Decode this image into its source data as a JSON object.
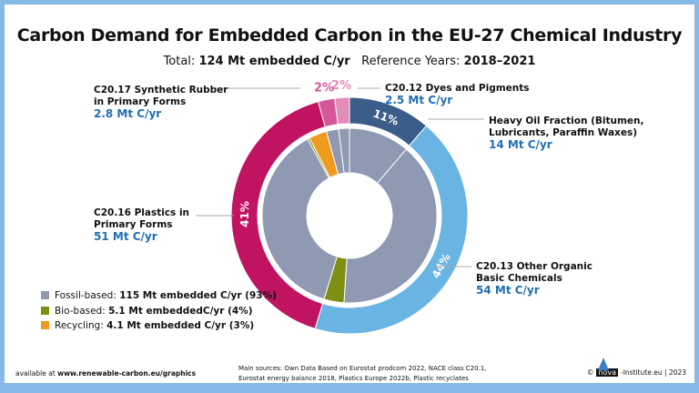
{
  "title": "Carbon Demand for Embedded Carbon in the EU-27 Chemical Industry",
  "subtitle": {
    "total_label": "Total:",
    "total_value": "124 Mt embedded C/yr",
    "years_label": "Reference Years:",
    "years_value": "2018–2021"
  },
  "chart_data": {
    "type": "pie",
    "variant": "nested-donut",
    "title": "Carbon Demand for Embedded Carbon in the EU-27 Chemical Industry",
    "unit": "Mt C/yr",
    "outer": [
      {
        "name": "C20.12 Dyes and Pigments",
        "value": 2.5,
        "value_label": "2.5 Mt C/yr",
        "percent_label": "2%",
        "color": "#e38cb8"
      },
      {
        "name": "Heavy Oil Fraction (Bitumen, Lubricants, Paraffin Waxes)",
        "value": 14,
        "value_label": "14 Mt C/yr",
        "percent_label": "11%",
        "color": "#3a5d8a"
      },
      {
        "name": "C20.13 Other Organic Basic Chemicals",
        "value": 54,
        "value_label": "54 Mt C/yr",
        "percent_label": "44%",
        "color": "#6ab4e4"
      },
      {
        "name": "C20.16 Plastics in Primary Forms",
        "value": 51,
        "value_label": "51 Mt C/yr",
        "percent_label": "41%",
        "color": "#c01463"
      },
      {
        "name": "C20.17 Synthetic Rubber in Primary Forms",
        "value": 2.8,
        "value_label": "2.8 Mt C/yr",
        "percent_label": "2%",
        "color": "#d5579a"
      }
    ],
    "inner": [
      {
        "category": "Fossil-based",
        "value": 2.5
      },
      {
        "category": "Fossil-based",
        "value": 14
      },
      {
        "category": "Fossil-based",
        "value": 49.4
      },
      {
        "category": "Bio-based",
        "value": 4.6
      },
      {
        "category": "Fossil-based",
        "value": 46.4
      },
      {
        "category": "Bio-based",
        "value": 0.5
      },
      {
        "category": "Recycling",
        "value": 4.1
      },
      {
        "category": "Fossil-based",
        "value": 2.8
      }
    ],
    "legend": [
      {
        "name": "Fossil-based",
        "label": "Fossil-based:",
        "value": "115 Mt embedded C/yr (93%)",
        "color": "#9099b2"
      },
      {
        "name": "Bio-based",
        "label": "Bio-based:",
        "value": "5.1 Mt embeddedC/yr (4%)",
        "color": "#7f8f12"
      },
      {
        "name": "Recycling",
        "label": "Recycling:",
        "value": "4.1 Mt embedded C/yr (3%)",
        "color": "#ee9a1c"
      }
    ],
    "legend_position": "bottom-left",
    "labels": {
      "rubber": [
        "C20.17 Synthetic Rubber",
        "in Primary Forms"
      ],
      "dyes": [
        "C20.12 Dyes and Pigments"
      ],
      "heavy": [
        "Heavy Oil Fraction (Bitumen,",
        "Lubricants, Paraffin Waxes)"
      ],
      "plastics": [
        "C20.16 Plastics in",
        "Primary Forms"
      ],
      "organic": [
        "C20.13 Other Organic",
        "Basic Chemicals"
      ]
    }
  },
  "footer": {
    "available_prefix": "available at",
    "available_url": "www.renewable-carbon.eu/graphics",
    "sources": [
      "Main sources: Own Data Based on Eurostat prodcom 2022, NACE class C20.1,",
      "Eurostat energy balance 2018, Plastics Europe 2022b, Plastic recyclates"
    ],
    "copyright": "©",
    "logo_text": "nova",
    "publisher": "-Institute.eu | 2023"
  }
}
